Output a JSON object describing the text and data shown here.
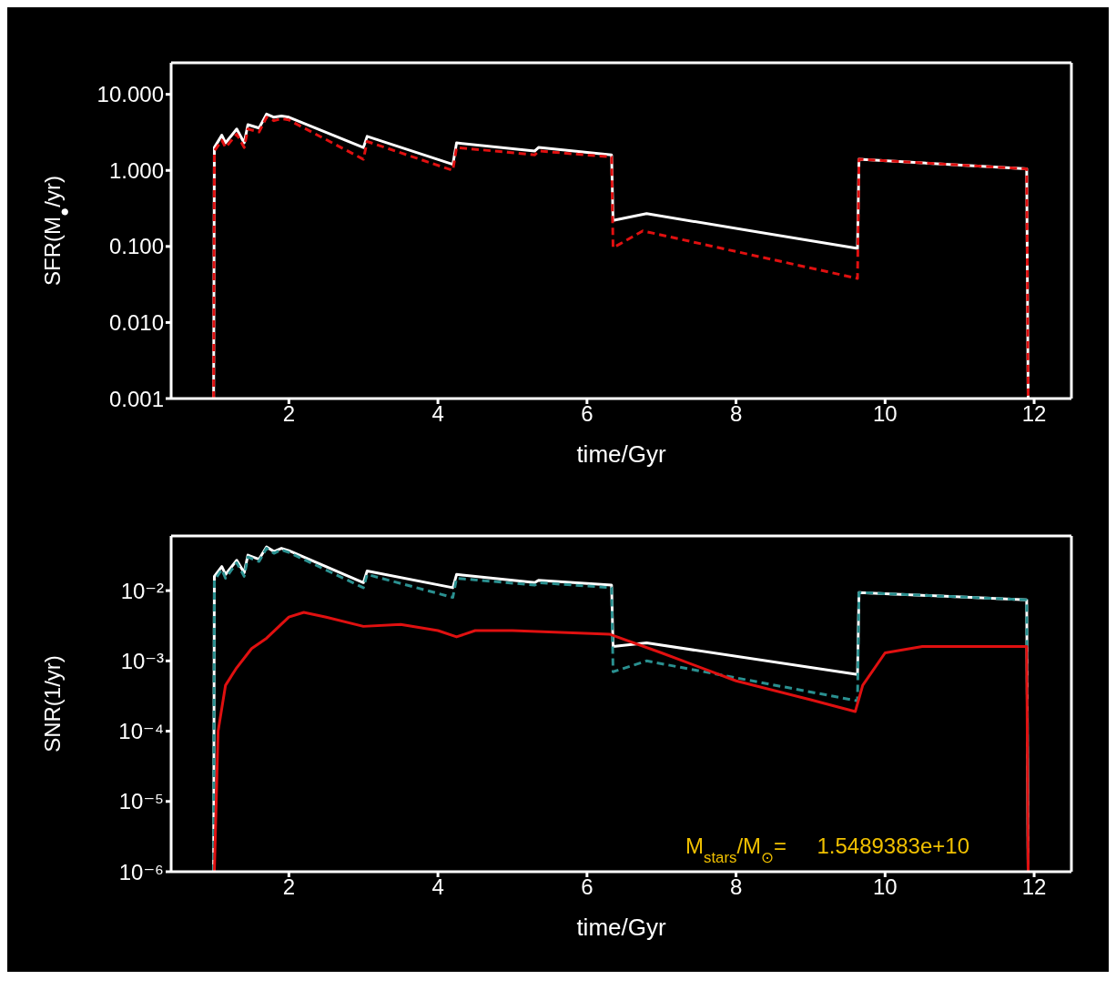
{
  "chart_data": [
    {
      "type": "line",
      "xlabel": "time/Gyr",
      "ylabel": "SFR(M$_{●}$/yr)",
      "log": "y",
      "marker": "none",
      "xlim": [
        0.42,
        12.5
      ],
      "xticks": [
        2,
        4,
        6,
        8,
        10,
        12
      ],
      "ylim": [
        0.001,
        26
      ],
      "yticks": [
        {
          "value": 10,
          "label": "10.000"
        },
        {
          "value": 1,
          "label": "1.000"
        },
        {
          "value": 0.1,
          "label": "0.100"
        },
        {
          "value": 0.01,
          "label": "0.010"
        },
        {
          "value": 0.001,
          "label": "0.001"
        }
      ],
      "series": [
        {
          "color": "#ffffff",
          "line_style": "solid",
          "x": [
            0.99,
            1.0,
            1.1,
            1.15,
            1.3,
            1.4,
            1.45,
            1.6,
            1.7,
            1.8,
            1.9,
            2.0,
            3.0,
            3.05,
            4.2,
            4.25,
            5.3,
            5.35,
            6.33,
            6.35,
            6.8,
            9.63,
            9.65,
            11.9,
            11.92
          ],
          "values": [
            0.001,
            2.0,
            2.9,
            2.3,
            3.5,
            2.3,
            4.0,
            3.6,
            5.5,
            5.0,
            5.2,
            5.0,
            2.0,
            2.8,
            1.2,
            2.3,
            1.8,
            2.0,
            1.6,
            0.22,
            0.27,
            0.094,
            1.4,
            1.05,
            0.001
          ]
        },
        {
          "color": "#e01010",
          "line_style": "dashed",
          "x": [
            0.99,
            1.0,
            1.1,
            1.15,
            1.3,
            1.4,
            1.45,
            1.6,
            1.7,
            1.8,
            1.9,
            2.0,
            3.0,
            3.05,
            4.2,
            4.25,
            5.3,
            5.35,
            6.33,
            6.35,
            6.75,
            9.63,
            9.65,
            11.9,
            11.92
          ],
          "values": [
            0.001,
            1.8,
            2.5,
            2.0,
            3.0,
            2.0,
            3.5,
            3.2,
            5.0,
            4.5,
            4.8,
            4.6,
            1.4,
            2.4,
            1.0,
            2.0,
            1.6,
            1.8,
            1.5,
            0.096,
            0.16,
            0.038,
            1.4,
            1.05,
            0.001
          ]
        }
      ]
    },
    {
      "type": "line",
      "xlabel": "time/Gyr",
      "ylabel": "SNR(1/yr)",
      "log": "y",
      "marker": "none",
      "xlim": [
        0.42,
        12.5
      ],
      "xticks": [
        2,
        4,
        6,
        8,
        10,
        12
      ],
      "ylim": [
        1e-06,
        0.06
      ],
      "yticks": [
        {
          "value": 0.01,
          "label": "10⁻²"
        },
        {
          "value": 0.001,
          "label": "10⁻³"
        },
        {
          "value": 0.0001,
          "label": "10⁻⁴"
        },
        {
          "value": 1e-05,
          "label": "10⁻⁵"
        },
        {
          "value": 1e-06,
          "label": "10⁻⁶"
        }
      ],
      "annotations": [
        "M$_{stars}$/M$_{⊙}$=     1.5489383e+10"
      ],
      "series": [
        {
          "color": "#ffffff",
          "line_style": "solid",
          "x": [
            0.99,
            1.0,
            1.1,
            1.15,
            1.3,
            1.4,
            1.45,
            1.6,
            1.7,
            1.8,
            1.9,
            2.0,
            3.0,
            3.05,
            4.2,
            4.25,
            5.3,
            5.35,
            6.33,
            6.35,
            6.8,
            9.63,
            9.65,
            11.9,
            11.92
          ],
          "values": [
            1e-06,
            0.016,
            0.022,
            0.017,
            0.027,
            0.018,
            0.032,
            0.028,
            0.042,
            0.036,
            0.04,
            0.037,
            0.013,
            0.019,
            0.011,
            0.017,
            0.013,
            0.014,
            0.012,
            0.0016,
            0.0018,
            0.00064,
            0.0094,
            0.0074,
            1e-06
          ]
        },
        {
          "color": "#2a9090",
          "line_style": "dashed",
          "x": [
            0.99,
            1.0,
            1.1,
            1.15,
            1.3,
            1.4,
            1.45,
            1.6,
            1.7,
            1.8,
            1.9,
            2.0,
            3.0,
            3.05,
            4.2,
            4.25,
            5.3,
            5.35,
            6.33,
            6.35,
            6.8,
            9.63,
            9.65,
            11.9,
            11.92
          ],
          "values": [
            1e-06,
            0.014,
            0.02,
            0.015,
            0.025,
            0.016,
            0.03,
            0.026,
            0.04,
            0.034,
            0.038,
            0.035,
            0.011,
            0.017,
            0.008,
            0.015,
            0.012,
            0.013,
            0.011,
            0.0007,
            0.001,
            0.00027,
            0.0094,
            0.0074,
            1e-06
          ]
        },
        {
          "color": "#e01010",
          "line_style": "solid",
          "x": [
            1.0,
            1.05,
            1.15,
            1.3,
            1.5,
            1.7,
            2.0,
            2.2,
            2.5,
            3.0,
            3.5,
            4.0,
            4.25,
            4.5,
            5.0,
            6.3,
            7.0,
            8.0,
            9.0,
            9.6,
            9.7,
            10.0,
            10.5,
            11.9,
            11.92
          ],
          "values": [
            1e-06,
            0.0001,
            0.00045,
            0.0008,
            0.0015,
            0.0021,
            0.0042,
            0.0049,
            0.0042,
            0.0031,
            0.0033,
            0.0027,
            0.0022,
            0.0027,
            0.0027,
            0.0024,
            0.0013,
            0.00052,
            0.00028,
            0.00019,
            0.00045,
            0.0013,
            0.0016,
            0.0016,
            1e-06
          ]
        }
      ]
    }
  ]
}
